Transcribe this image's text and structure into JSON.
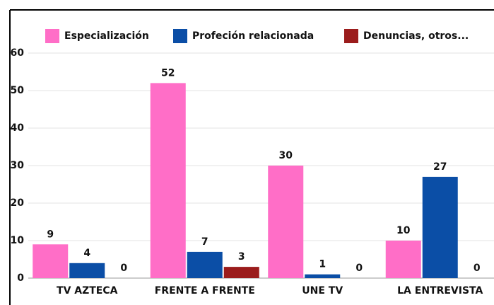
{
  "chart_data": {
    "type": "bar",
    "categories": [
      "TV AZTECA",
      "FRENTE A FRENTE",
      "UNE TV",
      "LA ENTREVISTA"
    ],
    "series": [
      {
        "name": "Especialización",
        "color": "#ff6ec7",
        "values": [
          9,
          52,
          30,
          10
        ]
      },
      {
        "name": "Profeción relacionada",
        "color": "#0b4ea6",
        "values": [
          4,
          7,
          1,
          27
        ]
      },
      {
        "name": "Denuncias, otros...",
        "color": "#9b1c1c",
        "values": [
          0,
          3,
          0,
          0
        ]
      }
    ],
    "ylim": [
      0,
      60
    ],
    "yticks": [
      0,
      10,
      20,
      30,
      40,
      50,
      60
    ],
    "grid": true,
    "legend": "top"
  }
}
